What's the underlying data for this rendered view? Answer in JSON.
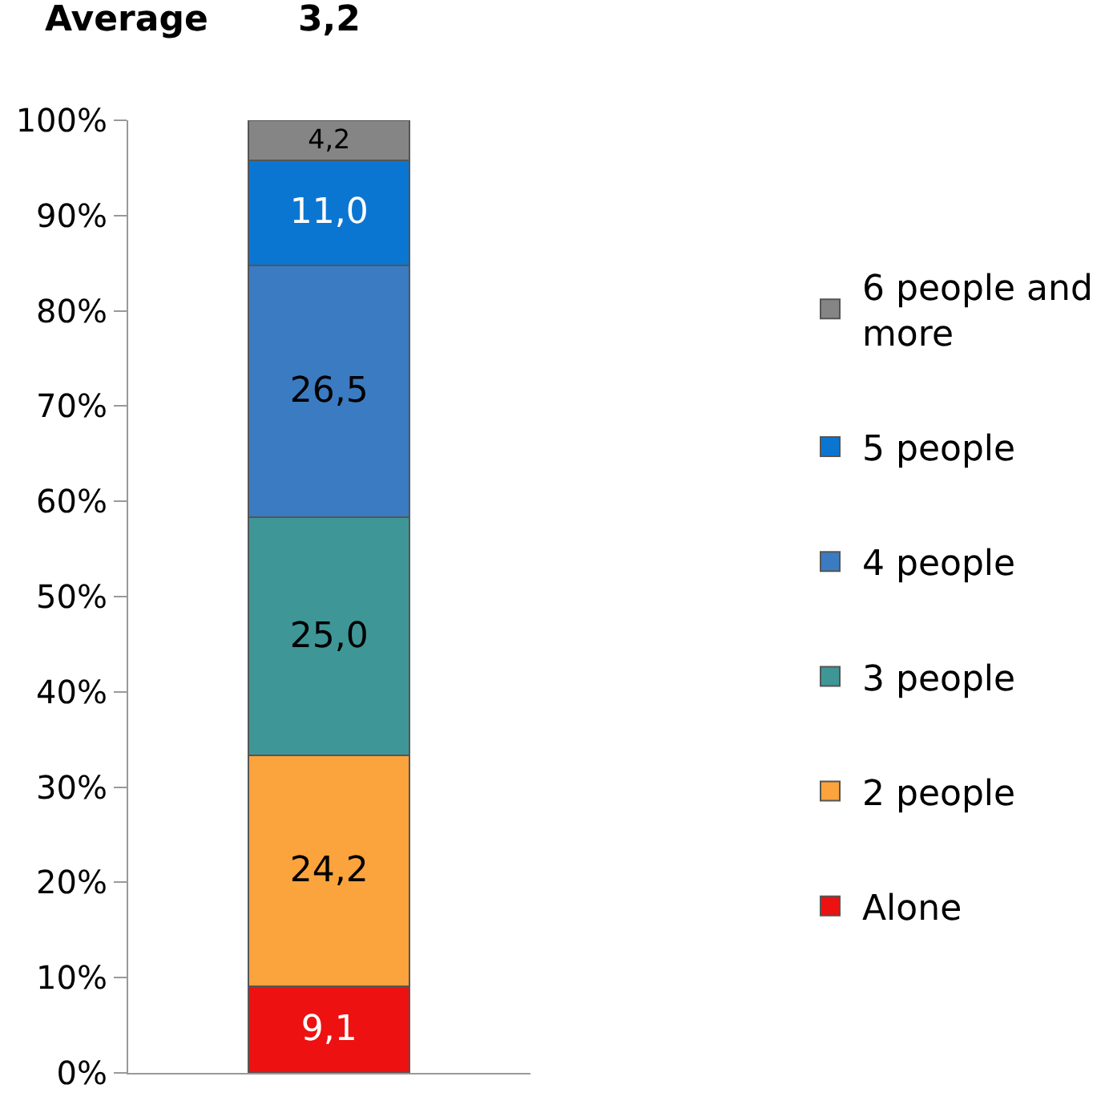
{
  "chart_data": {
    "type": "bar",
    "stacked": true,
    "categories": [
      null
    ],
    "series": [
      {
        "name": "Alone",
        "color": "#ee1111",
        "values": [
          9.1
        ],
        "value_labels": [
          "9,1"
        ]
      },
      {
        "name": "2 people",
        "color": "#fba33c",
        "values": [
          24.2
        ],
        "value_labels": [
          "24,2"
        ]
      },
      {
        "name": "3 people",
        "color": "#3f9697",
        "values": [
          25.0
        ],
        "value_labels": [
          "25,0"
        ]
      },
      {
        "name": "4 people",
        "color": "#3b7bc2",
        "values": [
          26.5
        ],
        "value_labels": [
          "26,5"
        ]
      },
      {
        "name": "5 people",
        "color": "#0b76d2",
        "values": [
          11.0
        ],
        "value_labels": [
          "11,0"
        ]
      },
      {
        "name": "6 people and more",
        "color": "#858585",
        "values": [
          4.2
        ],
        "value_labels": [
          "4,2"
        ]
      }
    ],
    "ylim": [
      0,
      100
    ],
    "yticks": [
      {
        "value": 0,
        "label": "0%"
      },
      {
        "value": 10,
        "label": "10%"
      },
      {
        "value": 20,
        "label": "20%"
      },
      {
        "value": 30,
        "label": "30%"
      },
      {
        "value": 40,
        "label": "40%"
      },
      {
        "value": 50,
        "label": "50%"
      },
      {
        "value": 60,
        "label": "60%"
      },
      {
        "value": 70,
        "label": "70%"
      },
      {
        "value": 80,
        "label": "80%"
      },
      {
        "value": 90,
        "label": "90%"
      },
      {
        "value": 100,
        "label": "100%"
      }
    ],
    "legend": "right",
    "annotations": [
      "Average",
      "3,2"
    ]
  }
}
